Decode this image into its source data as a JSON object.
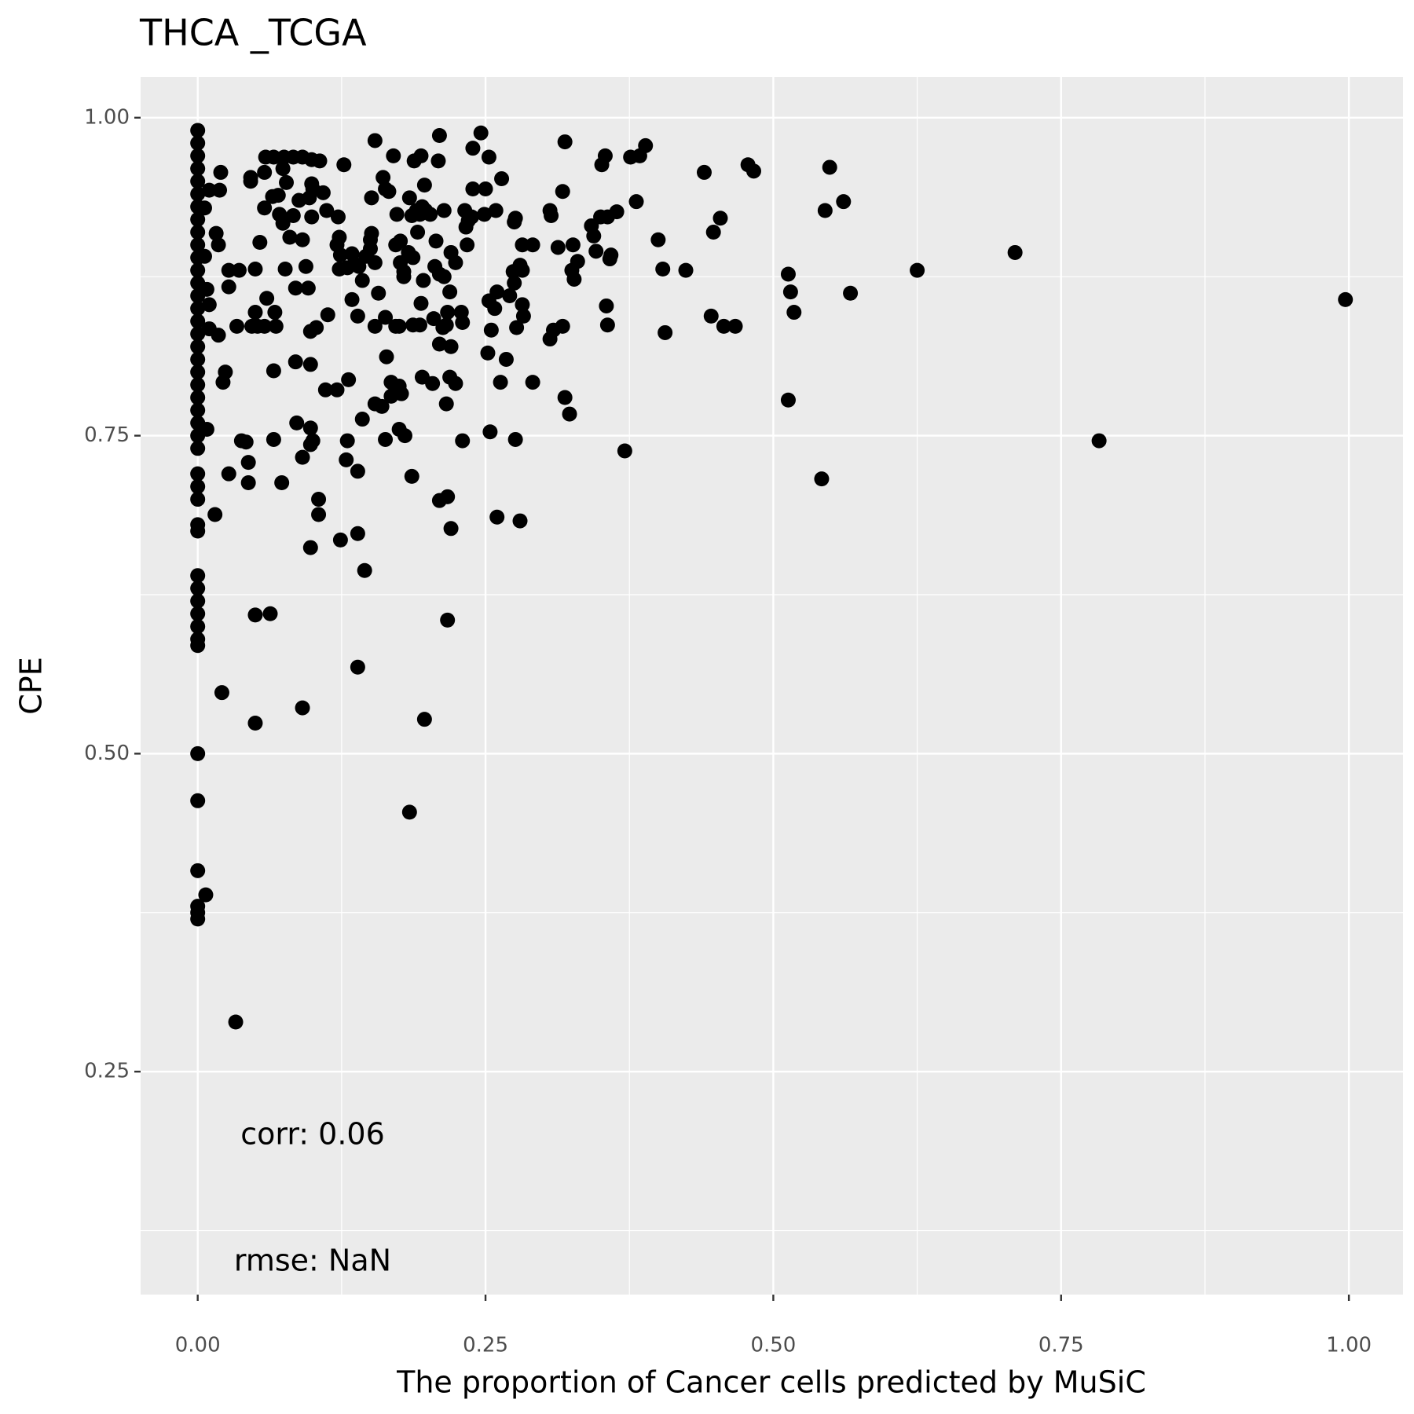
{
  "chart_data": {
    "type": "scatter",
    "title": "THCA _TCGA",
    "x_label": "The proportion of Cancer cells predicted by MuSiC",
    "y_label": "CPE",
    "annotations": [
      "corr: 0.06",
      "rmse: NaN"
    ],
    "color": "#000000",
    "grid": true,
    "xlim": [
      -0.0496,
      1.047
    ],
    "ylim": [
      0.0747,
      1.032
    ],
    "xticks": [
      {
        "value": 0,
        "label": "0.00"
      },
      {
        "value": 0.25,
        "label": "0.25"
      },
      {
        "value": 0.5,
        "label": "0.50"
      },
      {
        "value": 0.75,
        "label": "0.75"
      },
      {
        "value": 1,
        "label": "1.00"
      }
    ],
    "yticks": [
      {
        "value": 0.25,
        "label": "0.25"
      },
      {
        "value": 0.5,
        "label": "0.50"
      },
      {
        "value": 0.75,
        "label": "0.75"
      },
      {
        "value": 1,
        "label": "1.00"
      }
    ],
    "x": [
      0,
      0,
      0,
      0,
      0,
      0,
      0,
      0,
      0,
      0,
      0,
      0,
      0,
      0,
      0,
      0,
      0,
      0,
      0,
      0,
      0,
      0,
      0,
      0,
      0,
      0,
      0,
      0,
      0,
      0,
      0,
      0,
      0,
      0,
      0,
      0,
      0,
      0,
      0,
      0,
      0,
      0,
      0,
      0,
      0.007,
      0.997,
      0.783,
      0.71,
      0.625,
      0.542,
      0.513,
      0.513,
      0.515,
      0.518,
      0.567,
      0.549,
      0.561,
      0.545,
      0.478,
      0.483,
      0.44,
      0.454,
      0.448,
      0.424,
      0.404,
      0.4,
      0.446,
      0.457,
      0.467,
      0.406,
      0.371,
      0.389,
      0.384,
      0.376,
      0.381,
      0.364,
      0.356,
      0.35,
      0.342,
      0.344,
      0.346,
      0.358,
      0.359,
      0.354,
      0.351,
      0.326,
      0.33,
      0.325,
      0.327,
      0.313,
      0.317,
      0.319,
      0.306,
      0.307,
      0.355,
      0.356,
      0.317,
      0.309,
      0.306,
      0.319,
      0.323,
      0.291,
      0.291,
      0.282,
      0.282,
      0.28,
      0.282,
      0.283,
      0.275,
      0.274,
      0.276,
      0.275,
      0.277,
      0.276,
      0.28,
      0.26,
      0.254,
      0.263,
      0.268,
      0.252,
      0.255,
      0.258,
      0.253,
      0.26,
      0.271,
      0.264,
      0.253,
      0.246,
      0.239,
      0.25,
      0.239,
      0.259,
      0.249,
      0.238,
      0.235,
      0.232,
      0.233,
      0.234,
      0.229,
      0.23,
      0.23,
      0.22,
      0.217,
      0.217,
      0.21,
      0.224,
      0.219,
      0.216,
      0.22,
      0.21,
      0.216,
      0.213,
      0.217,
      0.219,
      0.214,
      0.21,
      0.206,
      0.224,
      0.22,
      0.207,
      0.214,
      0.21,
      0.209,
      0.194,
      0.188,
      0.197,
      0.195,
      0.193,
      0.19,
      0.198,
      0.202,
      0.184,
      0.186,
      0.191,
      0.173,
      0.176,
      0.172,
      0.183,
      0.187,
      0.176,
      0.179,
      0.179,
      0.196,
      0.194,
      0.193,
      0.187,
      0.175,
      0.172,
      0.205,
      0.195,
      0.204,
      0.175,
      0.177,
      0.168,
      0.168,
      0.175,
      0.18,
      0.186,
      0.197,
      0.184,
      0.163,
      0.164,
      0.157,
      0.154,
      0.154,
      0.16,
      0.163,
      0.143,
      0.145,
      0.139,
      0.124,
      0.139,
      0.139,
      0.129,
      0.13,
      0.131,
      0.121,
      0.111,
      0.113,
      0.139,
      0.134,
      0.14,
      0.143,
      0.154,
      0.15,
      0.146,
      0.151,
      0.15,
      0.136,
      0.13,
      0.123,
      0.124,
      0.121,
      0.123,
      0.134,
      0.122,
      0.112,
      0.109,
      0.1,
      0.099,
      0.106,
      0.127,
      0.099,
      0.154,
      0.161,
      0.163,
      0.166,
      0.151,
      0.17,
      0.091,
      0.083,
      0.075,
      0.066,
      0.059,
      0.074,
      0.058,
      0.046,
      0.046,
      0.077,
      0.065,
      0.07,
      0.088,
      0.097,
      0.058,
      0.071,
      0.074,
      0.083,
      0.099,
      0.08,
      0.091,
      0.054,
      0.094,
      0.076,
      0.036,
      0.027,
      0.05,
      0.085,
      0.096,
      0.027,
      0.06,
      0.067,
      0.05,
      0.052,
      0.047,
      0.058,
      0.068,
      0.034,
      0.103,
      0.098,
      0.018,
      0.024,
      0.022,
      0.066,
      0.085,
      0.098,
      0.086,
      0.098,
      0.1,
      0.098,
      0.091,
      0.066,
      0.038,
      0.042,
      0.044,
      0.044,
      0.027,
      0.073,
      0.015,
      0.105,
      0.105,
      0.098,
      0.05,
      0.063,
      0.021,
      0.091,
      0.05,
      0.033,
      0.008,
      0.01,
      0.019,
      0.02,
      0.016,
      0.018,
      0.008,
      0.01,
      0.01,
      0.006,
      0.006
    ],
    "values": [
      0.99,
      0.98,
      0.97,
      0.96,
      0.95,
      0.94,
      0.93,
      0.92,
      0.91,
      0.9,
      0.89,
      0.88,
      0.87,
      0.86,
      0.85,
      0.84,
      0.83,
      0.82,
      0.81,
      0.8,
      0.79,
      0.78,
      0.77,
      0.76,
      0.75,
      0.74,
      0.72,
      0.71,
      0.7,
      0.68,
      0.675,
      0.64,
      0.63,
      0.62,
      0.61,
      0.6,
      0.59,
      0.585,
      0.5,
      0.463,
      0.408,
      0.38,
      0.37,
      0.375,
      0.389,
      0.857,
      0.746,
      0.894,
      0.88,
      0.716,
      0.778,
      0.877,
      0.863,
      0.847,
      0.862,
      0.961,
      0.934,
      0.927,
      0.963,
      0.958,
      0.957,
      0.921,
      0.91,
      0.88,
      0.881,
      0.904,
      0.844,
      0.836,
      0.836,
      0.831,
      0.738,
      0.978,
      0.97,
      0.969,
      0.934,
      0.926,
      0.922,
      0.922,
      0.915,
      0.907,
      0.895,
      0.889,
      0.892,
      0.97,
      0.963,
      0.9,
      0.887,
      0.88,
      0.873,
      0.898,
      0.942,
      0.981,
      0.927,
      0.923,
      0.852,
      0.837,
      0.836,
      0.833,
      0.826,
      0.78,
      0.767,
      0.792,
      0.9,
      0.9,
      0.88,
      0.884,
      0.853,
      0.844,
      0.87,
      0.879,
      0.921,
      0.918,
      0.835,
      0.747,
      0.683,
      0.686,
      0.753,
      0.792,
      0.81,
      0.815,
      0.833,
      0.85,
      0.856,
      0.863,
      0.86,
      0.952,
      0.969,
      0.988,
      0.976,
      0.944,
      0.944,
      0.927,
      0.924,
      0.922,
      0.919,
      0.927,
      0.914,
      0.9,
      0.847,
      0.839,
      0.746,
      0.677,
      0.605,
      0.702,
      0.699,
      0.791,
      0.796,
      0.775,
      0.82,
      0.822,
      0.837,
      0.835,
      0.847,
      0.863,
      0.875,
      0.877,
      0.883,
      0.886,
      0.894,
      0.903,
      0.927,
      0.986,
      0.966,
      0.97,
      0.966,
      0.947,
      0.93,
      0.924,
      0.927,
      0.927,
      0.924,
      0.937,
      0.923,
      0.91,
      0.924,
      0.903,
      0.9,
      0.894,
      0.89,
      0.886,
      0.879,
      0.875,
      0.872,
      0.854,
      0.837,
      0.837,
      0.836,
      0.836,
      0.842,
      0.796,
      0.791,
      0.789,
      0.783,
      0.792,
      0.781,
      0.755,
      0.75,
      0.718,
      0.527,
      0.454,
      0.843,
      0.812,
      0.862,
      0.836,
      0.775,
      0.773,
      0.747,
      0.763,
      0.644,
      0.673,
      0.668,
      0.568,
      0.722,
      0.731,
      0.746,
      0.794,
      0.786,
      0.786,
      0.845,
      0.844,
      0.857,
      0.883,
      0.872,
      0.886,
      0.897,
      0.891,
      0.909,
      0.904,
      0.885,
      0.882,
      0.881,
      0.892,
      0.9,
      0.906,
      0.893,
      0.922,
      0.927,
      0.941,
      0.944,
      0.948,
      0.966,
      0.963,
      0.967,
      0.982,
      0.953,
      0.944,
      0.942,
      0.937,
      0.97,
      0.969,
      0.969,
      0.969,
      0.969,
      0.969,
      0.96,
      0.957,
      0.953,
      0.95,
      0.949,
      0.938,
      0.939,
      0.935,
      0.937,
      0.929,
      0.924,
      0.917,
      0.923,
      0.922,
      0.906,
      0.904,
      0.902,
      0.883,
      0.881,
      0.88,
      0.88,
      0.881,
      0.866,
      0.866,
      0.867,
      0.858,
      0.847,
      0.847,
      0.836,
      0.836,
      0.836,
      0.836,
      0.836,
      0.835,
      0.832,
      0.829,
      0.8,
      0.792,
      0.801,
      0.808,
      0.806,
      0.76,
      0.756,
      0.746,
      0.743,
      0.733,
      0.747,
      0.746,
      0.745,
      0.729,
      0.713,
      0.72,
      0.713,
      0.688,
      0.7,
      0.688,
      0.662,
      0.609,
      0.61,
      0.548,
      0.536,
      0.524,
      0.289,
      0.755,
      0.943,
      0.943,
      0.957,
      0.909,
      0.9,
      0.865,
      0.853,
      0.834,
      0.891,
      0.929
    ]
  }
}
